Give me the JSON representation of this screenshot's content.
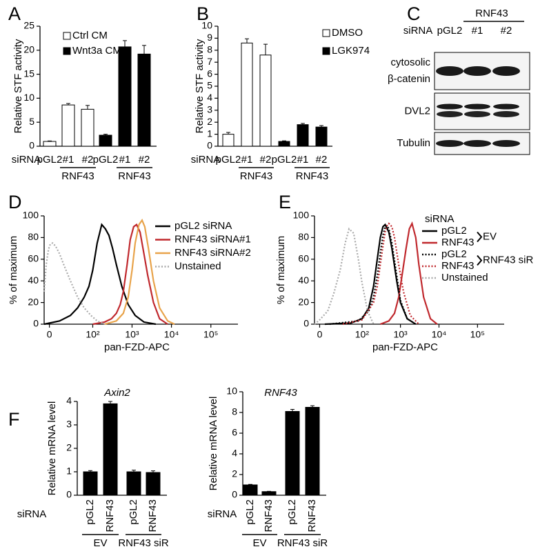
{
  "chart_data": [
    {
      "panel": "A",
      "type": "bar",
      "ylabel": "Relative STF activity",
      "row_label": "siRNA",
      "ylim": [
        0,
        25
      ],
      "yticks": [
        0,
        5,
        10,
        15,
        20,
        25
      ],
      "groups": [
        {
          "categories": [
            "pGL2"
          ]
        },
        {
          "label": "RNF43",
          "categories": [
            "#1",
            "#2"
          ]
        },
        {
          "categories": [
            "pGL2"
          ]
        },
        {
          "label": "RNF43",
          "categories": [
            "#1",
            "#2"
          ]
        }
      ],
      "series": [
        {
          "name": "Ctrl CM",
          "color": "#ffffff",
          "values": [
            1.0,
            8.6,
            7.7,
            null,
            null,
            null
          ],
          "errors": [
            0.1,
            0.3,
            0.8,
            null,
            null,
            null
          ]
        },
        {
          "name": "Wnt3a CM",
          "color": "#000000",
          "values": [
            null,
            null,
            null,
            2.3,
            20.7,
            19.2
          ],
          "errors": [
            null,
            null,
            null,
            0.2,
            1.3,
            1.8
          ]
        }
      ]
    },
    {
      "panel": "B",
      "type": "bar",
      "ylabel": "Relative STF activity",
      "row_label": "siRNA",
      "ylim": [
        0,
        10
      ],
      "yticks": [
        0,
        1,
        2,
        3,
        4,
        5,
        6,
        7,
        8,
        9,
        10
      ],
      "groups": [
        {
          "categories": [
            "pGL2"
          ]
        },
        {
          "label": "RNF43",
          "categories": [
            "#1",
            "#2"
          ]
        },
        {
          "categories": [
            "pGL2"
          ]
        },
        {
          "label": "RNF43",
          "categories": [
            "#1",
            "#2"
          ]
        }
      ],
      "series": [
        {
          "name": "DMSO",
          "color": "#ffffff",
          "values": [
            1.0,
            8.6,
            7.6,
            null,
            null,
            null
          ],
          "errors": [
            0.15,
            0.35,
            0.9,
            null,
            null,
            null
          ]
        },
        {
          "name": "LGK974",
          "color": "#000000",
          "values": [
            null,
            null,
            null,
            0.4,
            1.8,
            1.6
          ],
          "errors": [
            null,
            null,
            null,
            0.05,
            0.1,
            0.12
          ]
        }
      ]
    },
    {
      "panel": "D",
      "type": "line",
      "ylabel": "% of maximum",
      "xlabel": "pan-FZD-APC",
      "xscale": "biexponential",
      "xlim": [
        -5,
        300000
      ],
      "xticks": [
        0,
        {
          "value": 100,
          "label": "10²"
        },
        {
          "value": 1000,
          "label": "10³"
        },
        {
          "value": 10000,
          "label": "10⁴"
        },
        {
          "value": 100000,
          "label": "10⁵"
        }
      ],
      "ylim": [
        0,
        100
      ],
      "yticks": [
        0,
        20,
        40,
        60,
        80,
        100
      ],
      "series": [
        {
          "name": "pGL2 siRNA",
          "color": "#000000",
          "dash": "solid",
          "x": [
            -5,
            10,
            25,
            40,
            60,
            80,
            100,
            130,
            170,
            210,
            260,
            320,
            400,
            550,
            800,
            1200,
            2000,
            4000
          ],
          "values": [
            0,
            3,
            8,
            15,
            25,
            35,
            50,
            75,
            92,
            88,
            82,
            70,
            55,
            35,
            18,
            8,
            2,
            0
          ]
        },
        {
          "name": "RNF43 siRNA#1",
          "color": "#c0282d",
          "dash": "solid",
          "x": [
            100,
            200,
            300,
            400,
            500,
            600,
            750,
            900,
            1100,
            1300,
            1600,
            2000,
            2500,
            3500,
            5000,
            8000
          ],
          "values": [
            0,
            2,
            5,
            10,
            18,
            30,
            55,
            78,
            90,
            92,
            85,
            65,
            45,
            20,
            5,
            0
          ]
        },
        {
          "name": "RNF43 siRNA#2",
          "color": "#e8a34a",
          "dash": "solid",
          "x": [
            200,
            400,
            600,
            800,
            1000,
            1200,
            1500,
            1800,
            2100,
            2600,
            3500,
            5000,
            8000,
            12000
          ],
          "values": [
            0,
            3,
            10,
            25,
            50,
            75,
            92,
            96,
            90,
            70,
            40,
            15,
            3,
            0
          ]
        },
        {
          "name": "Unstained",
          "color": "#aaaaaa",
          "dash": "dotted",
          "x": [
            -5,
            -3,
            -1,
            0,
            1,
            3,
            6,
            10,
            15,
            25,
            40,
            60,
            90,
            130,
            200
          ],
          "values": [
            30,
            55,
            68,
            72,
            74,
            75,
            72,
            65,
            55,
            40,
            25,
            15,
            8,
            3,
            0
          ]
        }
      ]
    },
    {
      "panel": "E",
      "type": "line",
      "ylabel": "% of maximum",
      "xlabel": "pan-FZD-APC",
      "xscale": "biexponential",
      "legend_title": "siRNA",
      "legend_groups": [
        "EV",
        "RNF43 siR"
      ],
      "xlim": [
        -5,
        300000
      ],
      "xticks": [
        0,
        {
          "value": 100,
          "label": "10²"
        },
        {
          "value": 1000,
          "label": "10³"
        },
        {
          "value": 10000,
          "label": "10⁴"
        },
        {
          "value": 100000,
          "label": "10⁵"
        }
      ],
      "ylim": [
        0,
        100
      ],
      "yticks": [
        0,
        20,
        40,
        60,
        80,
        100
      ],
      "series": [
        {
          "name": "pGL2",
          "color": "#000000",
          "dash": "solid",
          "x": [
            5,
            50,
            100,
            150,
            200,
            250,
            300,
            350,
            400,
            500,
            600,
            800,
            1000,
            1500,
            2500
          ],
          "values": [
            0,
            1,
            5,
            15,
            35,
            60,
            80,
            90,
            92,
            85,
            70,
            40,
            20,
            5,
            0
          ]
        },
        {
          "name": "RNF43",
          "color": "#c0282d",
          "dash": "solid",
          "x": [
            300,
            500,
            700,
            900,
            1100,
            1400,
            1700,
            2000,
            2500,
            3000,
            4000,
            6000,
            9000
          ],
          "values": [
            0,
            3,
            10,
            25,
            45,
            70,
            88,
            93,
            80,
            55,
            25,
            5,
            0
          ]
        },
        {
          "name": "pGL2",
          "color": "#000000",
          "dash": "dotted",
          "x": [
            10,
            80,
            150,
            200,
            250,
            300,
            350,
            400,
            450,
            500,
            600,
            800,
            1000,
            1500,
            2500
          ],
          "values": [
            0,
            3,
            12,
            25,
            45,
            65,
            82,
            90,
            91,
            88,
            75,
            45,
            22,
            5,
            0
          ]
        },
        {
          "name": "RNF43",
          "color": "#c0282d",
          "dash": "dotted",
          "x": [
            30,
            100,
            200,
            250,
            300,
            350,
            400,
            450,
            500,
            600,
            700,
            900,
            1200,
            1800,
            3000
          ],
          "values": [
            0,
            4,
            20,
            35,
            55,
            72,
            85,
            91,
            93,
            90,
            80,
            55,
            30,
            8,
            0
          ]
        },
        {
          "name": "Unstained",
          "color": "#aaaaaa",
          "dash": "dotted",
          "x": [
            -5,
            0,
            8,
            15,
            25,
            35,
            45,
            60,
            80,
            100,
            140,
            200
          ],
          "values": [
            0,
            4,
            12,
            28,
            50,
            75,
            88,
            84,
            60,
            38,
            12,
            0
          ]
        }
      ]
    },
    {
      "panel": "F",
      "type": "bar",
      "title": "Axin2",
      "ylabel": "Relative mRNA level",
      "row_label": "siRNA",
      "rotate_categories": true,
      "ylim": [
        0,
        4
      ],
      "yticks": [
        0,
        1,
        2,
        3,
        4
      ],
      "groups": [
        {
          "label": "EV",
          "categories": [
            "pGL2",
            "RNF43"
          ]
        },
        {
          "label": "RNF43 siR",
          "categories": [
            "pGL2",
            "RNF43"
          ]
        }
      ],
      "series": [
        {
          "color": "#000000",
          "values": [
            1.0,
            3.9,
            1.0,
            0.97
          ],
          "errors": [
            0.05,
            0.1,
            0.07,
            0.07
          ]
        }
      ]
    },
    {
      "type": "bar",
      "title": "RNF43",
      "ylabel": "Relative mRNA level",
      "row_label": "siRNA",
      "rotate_categories": true,
      "ylim": [
        0,
        10
      ],
      "yticks": [
        0,
        2,
        4,
        6,
        8,
        10
      ],
      "groups": [
        {
          "label": "EV",
          "categories": [
            "pGL2",
            "RNF43"
          ]
        },
        {
          "label": "RNF43 siR",
          "categories": [
            "pGL2",
            "RNF43"
          ]
        }
      ],
      "series": [
        {
          "color": "#000000",
          "values": [
            1.0,
            0.35,
            8.1,
            8.5
          ],
          "errors": [
            0.05,
            0.03,
            0.2,
            0.15
          ]
        }
      ]
    }
  ],
  "blot": {
    "panel": "C",
    "row_label": "siRNA",
    "group_label": "RNF43",
    "lanes": [
      "pGL2",
      "#1",
      "#2"
    ],
    "rows": [
      {
        "label": [
          "cytosolic",
          "β-catenin"
        ]
      },
      {
        "label": "DVL2"
      },
      {
        "label": "Tubulin"
      }
    ]
  }
}
